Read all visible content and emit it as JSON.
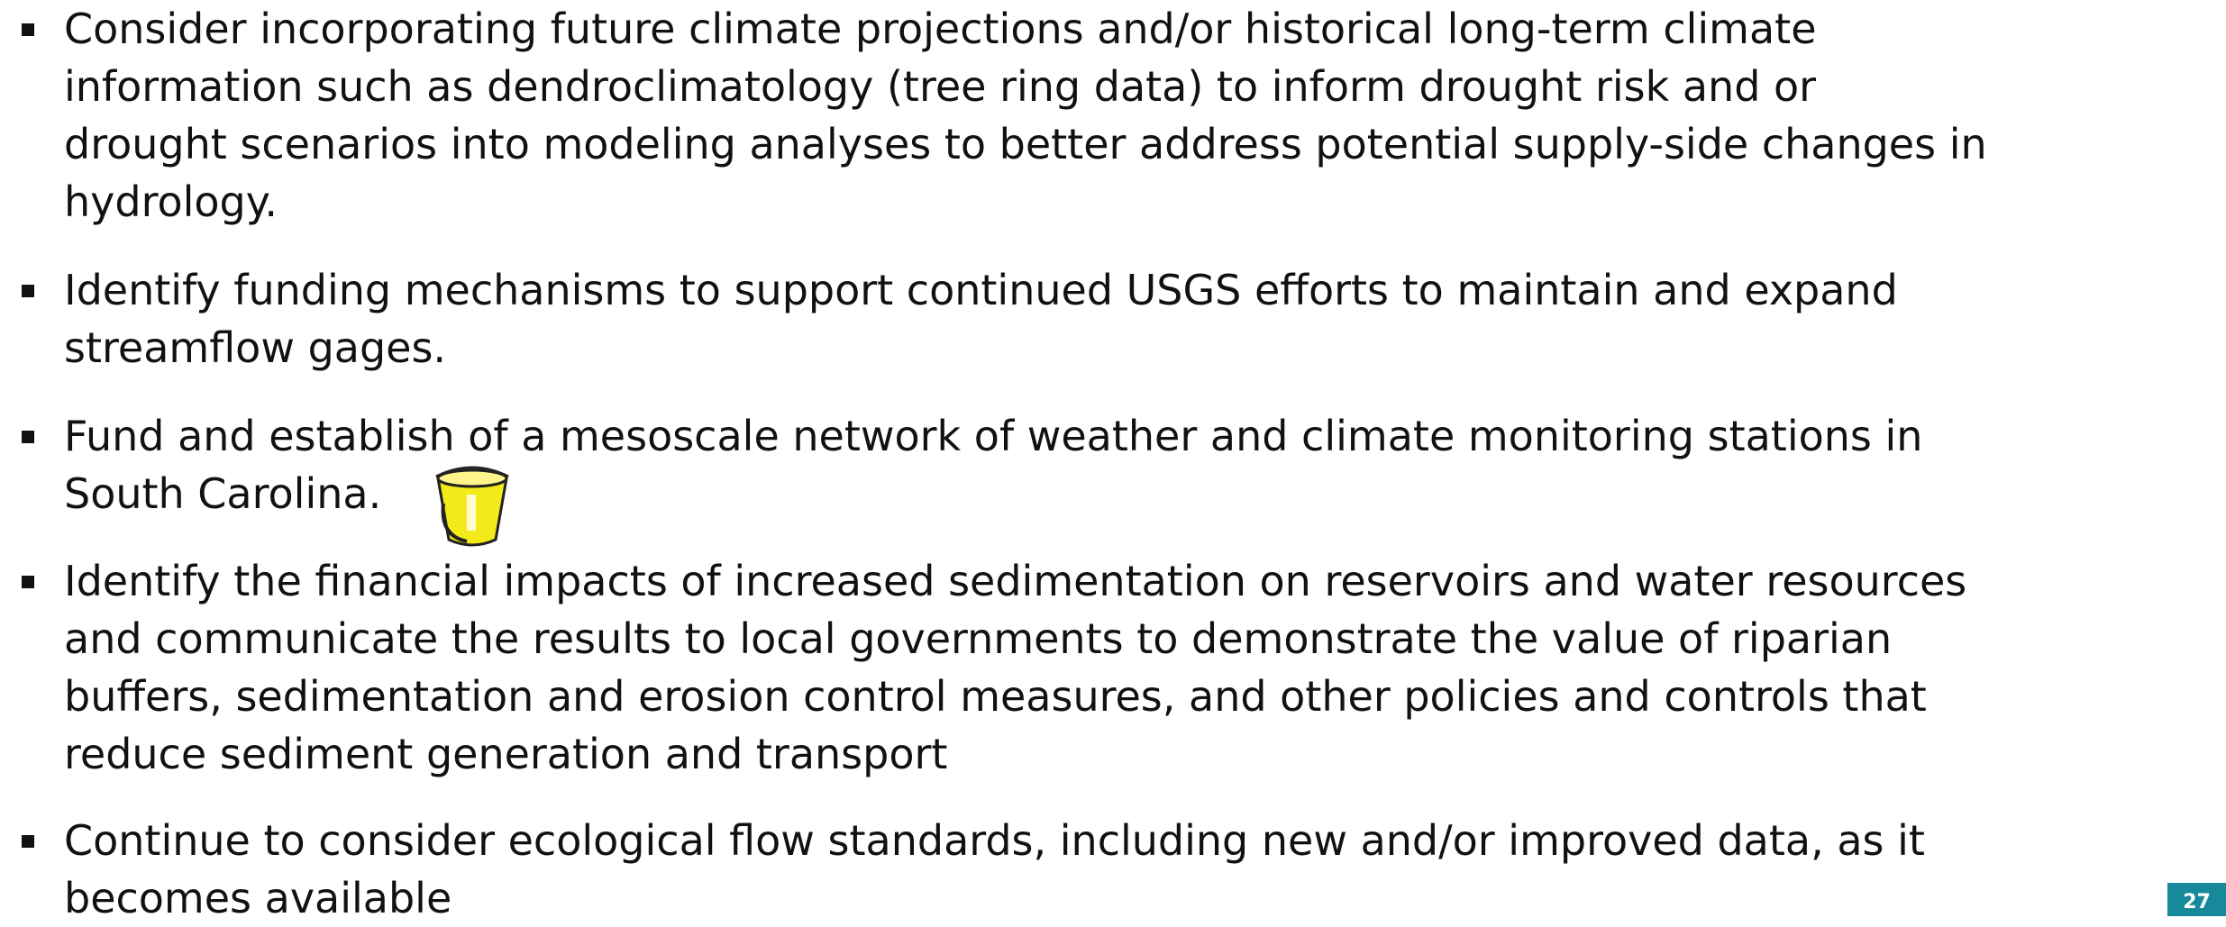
{
  "bullets": [
    {
      "lines": [
        "Consider incorporating future climate projections and/or historical long-term climate",
        "information such as dendroclimatology (tree ring data) to inform drought risk and or",
        "drought scenarios into modeling analyses to better address potential supply-side changes in",
        "hydrology."
      ]
    },
    {
      "lines": [
        "Identify funding mechanisms to support continued USGS efforts to maintain and expand",
        "streamflow gages."
      ]
    },
    {
      "lines": [
        "Fund and establish of a mesoscale network of weather and climate monitoring stations in",
        "South Carolina."
      ]
    },
    {
      "lines": [
        "Identify the financial impacts of increased sedimentation on reservoirs and water resources",
        "and communicate the results to local governments to demonstrate the value of riparian",
        "buffers, sedimentation and erosion control measures, and other policies and controls that",
        "reduce sediment generation and transport"
      ]
    },
    {
      "lines": [
        "Continue to consider ecological flow standards, including new and/or improved data, as it",
        "becomes available"
      ]
    }
  ],
  "page_number": "27"
}
